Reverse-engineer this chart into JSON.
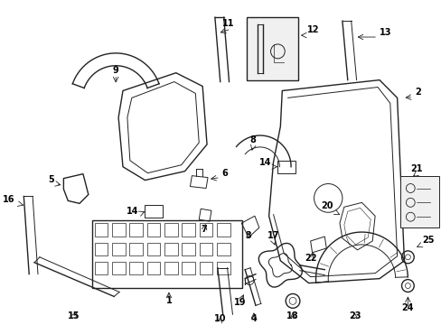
{
  "background_color": "#ffffff",
  "line_color": "#222222",
  "figsize": [
    4.89,
    3.6
  ],
  "dpi": 100,
  "xlim": [
    0,
    489
  ],
  "ylim": [
    0,
    360
  ]
}
